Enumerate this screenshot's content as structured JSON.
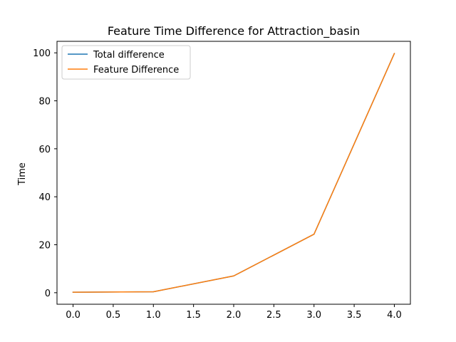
{
  "chart_data": {
    "type": "line",
    "title": "Feature Time Difference for Attraction_basin",
    "xlabel": "",
    "ylabel": "Time",
    "x": [
      0,
      1,
      2,
      3,
      4
    ],
    "series": [
      {
        "name": "Total difference",
        "color": "#1f77b4",
        "values": [
          0.2,
          0.4,
          7.0,
          24.4,
          99.7
        ]
      },
      {
        "name": "Feature Difference",
        "color": "#ff7f0e",
        "values": [
          0.2,
          0.4,
          7.0,
          24.4,
          99.7
        ]
      }
    ],
    "xticks": [
      0.0,
      0.5,
      1.0,
      1.5,
      2.0,
      2.5,
      3.0,
      3.5,
      4.0
    ],
    "xtick_labels": [
      "0.0",
      "0.5",
      "1.0",
      "1.5",
      "2.0",
      "2.5",
      "3.0",
      "3.5",
      "4.0"
    ],
    "yticks": [
      0,
      20,
      40,
      60,
      80,
      100
    ],
    "ytick_labels": [
      "0",
      "20",
      "40",
      "60",
      "80",
      "100"
    ],
    "xlim": [
      -0.2,
      4.2
    ],
    "ylim": [
      -4.8,
      104.8
    ],
    "grid": false,
    "legend_position": "top-left"
  }
}
